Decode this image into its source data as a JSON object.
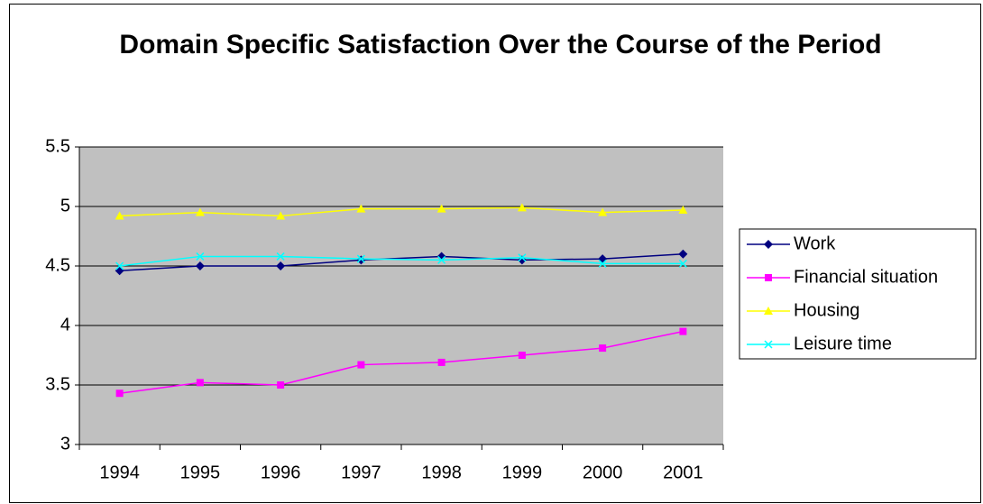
{
  "chart_data": {
    "type": "line",
    "title": "Domain Specific Satisfaction Over the Course of the Period",
    "categories": [
      "1994",
      "1995",
      "1996",
      "1997",
      "1998",
      "1999",
      "2000",
      "2001"
    ],
    "series": [
      {
        "name": "Work",
        "color": "#000080",
        "marker": "diamond",
        "values": [
          4.46,
          4.5,
          4.5,
          4.55,
          4.58,
          4.55,
          4.56,
          4.6
        ]
      },
      {
        "name": "Financial situation",
        "color": "#ff00ff",
        "marker": "square",
        "values": [
          3.43,
          3.52,
          3.5,
          3.67,
          3.69,
          3.75,
          3.81,
          3.95
        ]
      },
      {
        "name": "Housing",
        "color": "#ffff00",
        "marker": "triangle",
        "values": [
          4.92,
          4.95,
          4.92,
          4.98,
          4.98,
          4.99,
          4.95,
          4.97
        ]
      },
      {
        "name": "Leisure time",
        "color": "#00ffff",
        "marker": "x",
        "values": [
          4.5,
          4.58,
          4.58,
          4.56,
          4.55,
          4.57,
          4.52,
          4.52
        ]
      }
    ],
    "ylim": [
      3,
      5.5
    ],
    "yticks": [
      3,
      3.5,
      4,
      4.5,
      5,
      5.5
    ],
    "grid": true,
    "plot_background": "#c0c0c0",
    "legend": "right"
  }
}
